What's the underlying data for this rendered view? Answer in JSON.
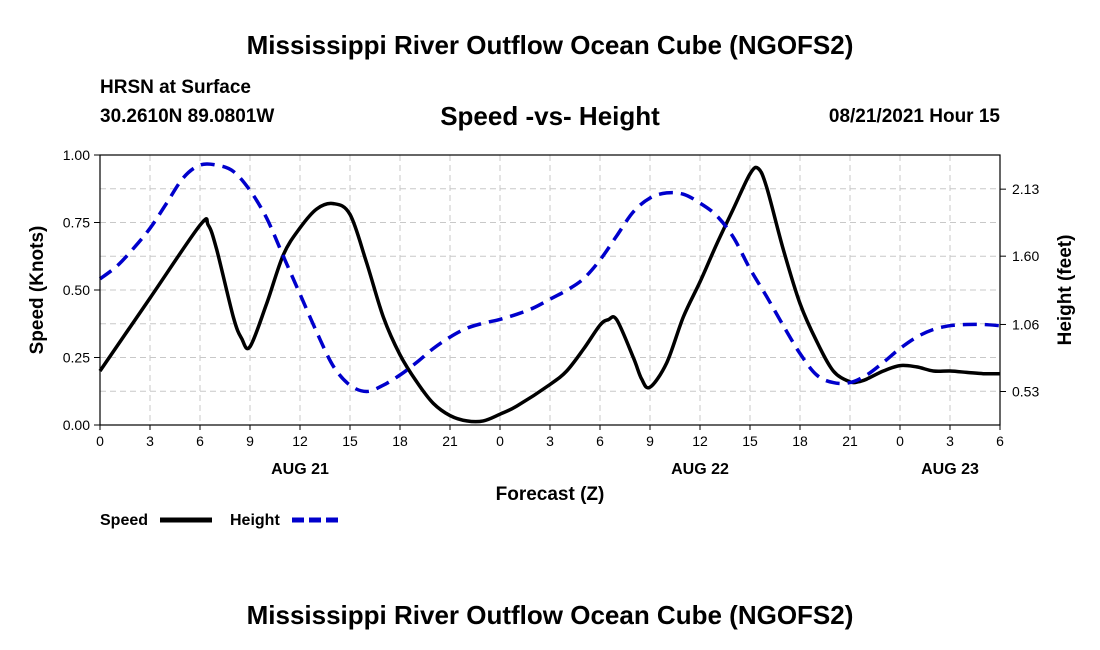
{
  "title": "Mississippi River Outflow Ocean Cube (NGOFS2)",
  "footer_title": "Mississippi River Outflow Ocean Cube (NGOFS2)",
  "station": "HRSN at Surface",
  "coords": "30.2610N  89.0801W",
  "subtitle": "Speed -vs- Height",
  "datetime": "08/21/2021 Hour 15",
  "colors": {
    "speed": "#000000",
    "height": "#0000cc",
    "grid": "#c8c8c8"
  },
  "chart_data": {
    "type": "line",
    "title": "Speed -vs- Height",
    "xlabel": "Forecast (Z)",
    "ylabel": "Speed (Knots)",
    "y2label": "Height (feet)",
    "xlim": [
      0,
      54
    ],
    "ylim": [
      0,
      1
    ],
    "y2lim": [
      0.265,
      2.4
    ],
    "x_ticks": [
      0,
      3,
      6,
      9,
      12,
      15,
      18,
      21,
      24,
      27,
      30,
      33,
      36,
      39,
      42,
      45,
      48,
      51,
      54
    ],
    "x_tick_labels": [
      "0",
      "3",
      "6",
      "9",
      "12",
      "15",
      "18",
      "21",
      "0",
      "3",
      "6",
      "9",
      "12",
      "15",
      "18",
      "21",
      "0",
      "3",
      "6"
    ],
    "y_ticks": [
      0,
      0.25,
      0.5,
      0.75,
      1.0
    ],
    "y_tick_labels": [
      "0.00",
      "0.25",
      "0.50",
      "0.75",
      "1.00"
    ],
    "y2_ticks": [
      0.53,
      1.06,
      1.6,
      2.13
    ],
    "y2_tick_labels": [
      "0.53",
      "1.06",
      "1.60",
      "2.13"
    ],
    "date_labels": [
      {
        "x": 12,
        "label": "AUG 21"
      },
      {
        "x": 36,
        "label": "AUG 22"
      },
      {
        "x": 51,
        "label": "AUG 23"
      }
    ],
    "series": [
      {
        "name": "Speed",
        "axis": "left",
        "style": "solid",
        "x": [
          0,
          3,
          6,
          6.5,
          7,
          8,
          8.5,
          9,
          10,
          11,
          12,
          13,
          14,
          15,
          16,
          17,
          18,
          19,
          20,
          21,
          22,
          23,
          24,
          25,
          27,
          28,
          29,
          30,
          30.5,
          31,
          32,
          32.5,
          33,
          34,
          35,
          36,
          37,
          38,
          39,
          39.5,
          40,
          41,
          42,
          43,
          44,
          45,
          45.5,
          46,
          47,
          48,
          49,
          50,
          51,
          52,
          53,
          54
        ],
        "values": [
          0.2,
          0.47,
          0.74,
          0.74,
          0.65,
          0.4,
          0.32,
          0.29,
          0.45,
          0.63,
          0.73,
          0.8,
          0.82,
          0.78,
          0.6,
          0.4,
          0.26,
          0.16,
          0.08,
          0.035,
          0.015,
          0.015,
          0.04,
          0.07,
          0.15,
          0.2,
          0.28,
          0.37,
          0.39,
          0.39,
          0.25,
          0.17,
          0.14,
          0.23,
          0.4,
          0.53,
          0.67,
          0.8,
          0.93,
          0.95,
          0.88,
          0.65,
          0.45,
          0.31,
          0.2,
          0.16,
          0.16,
          0.17,
          0.2,
          0.22,
          0.215,
          0.2,
          0.2,
          0.195,
          0.19,
          0.19
        ]
      },
      {
        "name": "Height",
        "axis": "right",
        "style": "dashed",
        "x": [
          0,
          1,
          2,
          3,
          4,
          5,
          6,
          7,
          8,
          9,
          10,
          11,
          12,
          13,
          14,
          15,
          16,
          17,
          18,
          19,
          20,
          21,
          22,
          23,
          24,
          25,
          26,
          27,
          28,
          29,
          30,
          31,
          32,
          33,
          34,
          35,
          36,
          37,
          38,
          39,
          40,
          41,
          42,
          43,
          44,
          45,
          46,
          47,
          48,
          49,
          50,
          51,
          52,
          53,
          54
        ],
        "values": [
          1.42,
          1.52,
          1.66,
          1.82,
          2.02,
          2.22,
          2.32,
          2.32,
          2.27,
          2.12,
          1.9,
          1.6,
          1.3,
          1.0,
          0.73,
          0.58,
          0.53,
          0.58,
          0.66,
          0.76,
          0.87,
          0.96,
          1.03,
          1.07,
          1.1,
          1.14,
          1.19,
          1.26,
          1.33,
          1.42,
          1.57,
          1.76,
          1.95,
          2.06,
          2.1,
          2.09,
          2.02,
          1.92,
          1.75,
          1.5,
          1.28,
          1.05,
          0.83,
          0.66,
          0.6,
          0.6,
          0.66,
          0.76,
          0.87,
          0.96,
          1.02,
          1.05,
          1.06,
          1.06,
          1.05
        ]
      }
    ],
    "legend": [
      {
        "label": "Speed",
        "style": "solid"
      },
      {
        "label": "Height",
        "style": "dashed"
      }
    ]
  }
}
